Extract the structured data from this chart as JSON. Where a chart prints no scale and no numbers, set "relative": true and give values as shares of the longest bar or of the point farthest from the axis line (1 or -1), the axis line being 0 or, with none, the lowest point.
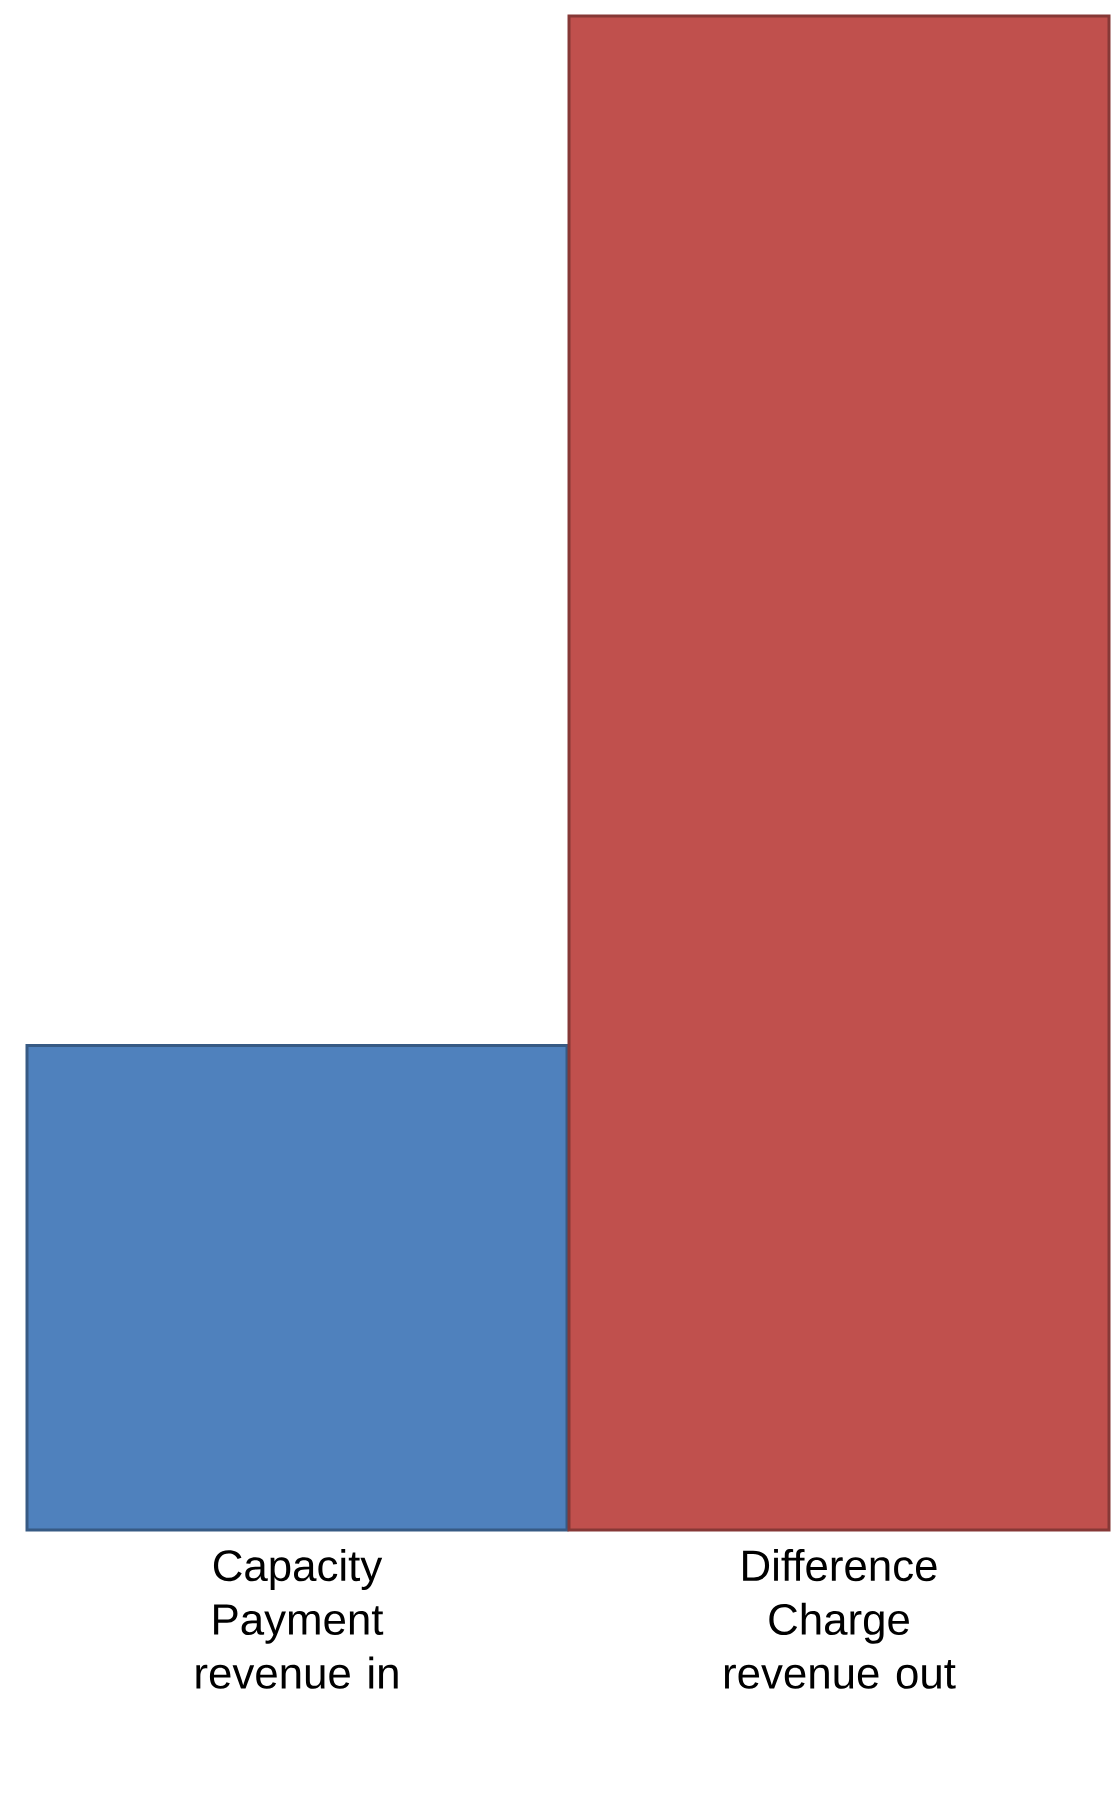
{
  "chart_data": {
    "type": "bar",
    "relative": true,
    "categories": [
      "Capacity Payment revenue in",
      "Difference Charge revenue out"
    ],
    "values": [
      0.32,
      1
    ],
    "colors": [
      "#4f81bd",
      "#c0504d"
    ]
  }
}
